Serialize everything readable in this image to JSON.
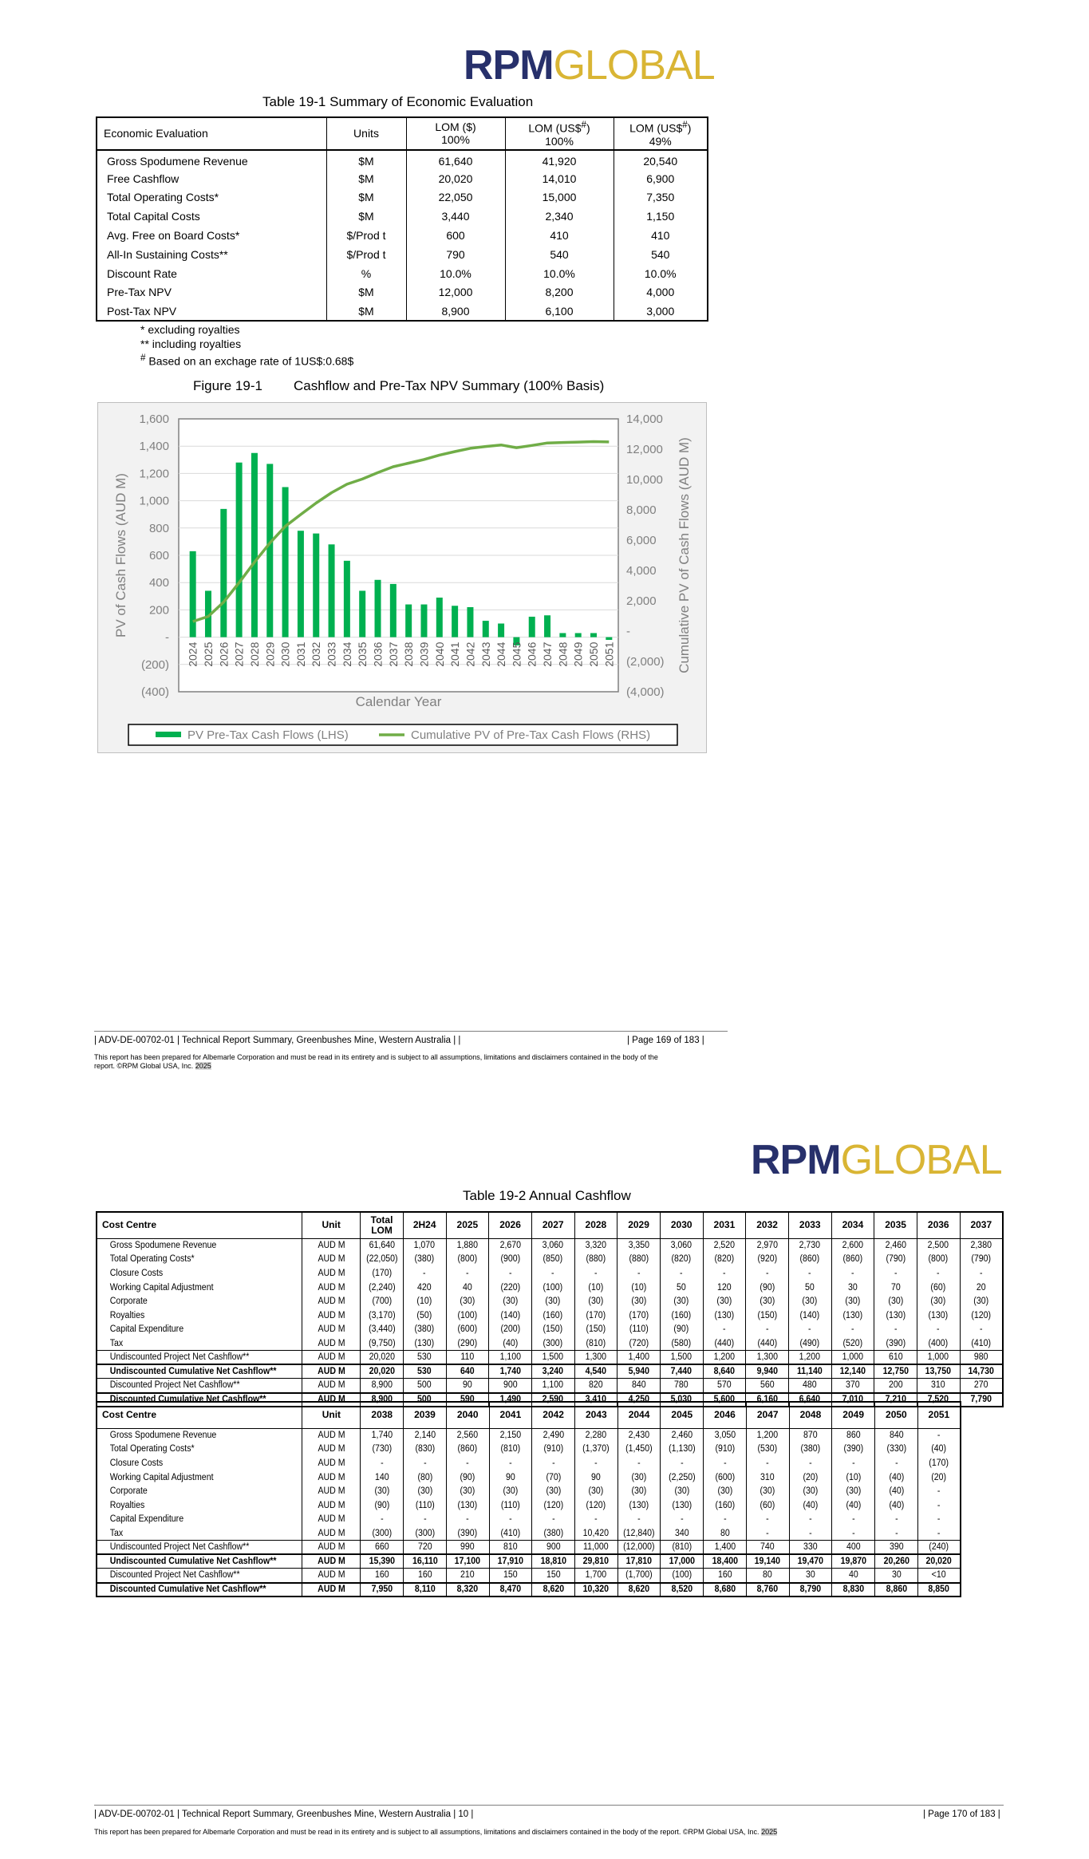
{
  "page1": {
    "logo": {
      "rpm": "RPM",
      "global": "GLOBAL"
    },
    "table_caption": "Table 19-1 Summary of Economic Evaluation",
    "table": {
      "headers": [
        "Economic Evaluation",
        "Units",
        "LOM ($)\n100%",
        "LOM (US$#)\n100%",
        "LOM (US$#)\n49%"
      ],
      "rows": [
        [
          "Gross Spodumene Revenue",
          "$M",
          "61,640",
          "41,920",
          "20,540"
        ],
        [
          "Free Cashflow",
          "$M",
          "20,020",
          "14,010",
          "6,900"
        ],
        [
          "Total Operating Costs*",
          "$M",
          "22,050",
          "15,000",
          "7,350"
        ],
        [
          "Total Capital Costs",
          "$M",
          "3,440",
          "2,340",
          "1,150"
        ],
        [
          "Avg. Free on Board Costs*",
          "$/Prod t",
          "600",
          "410",
          "410"
        ],
        [
          "All-In Sustaining Costs**",
          "$/Prod t",
          "790",
          "540",
          "540"
        ],
        [
          "Discount Rate",
          "%",
          "10.0%",
          "10.0%",
          "10.0%"
        ],
        [
          "Pre-Tax NPV",
          "$M",
          "12,000",
          "8,200",
          "4,000"
        ],
        [
          "Post-Tax NPV",
          "$M",
          "8,900",
          "6,100",
          "3,000"
        ]
      ]
    },
    "notes": [
      "* excluding royalties",
      "** including royalties",
      "# Based on an exchage rate of 1US$:0.68$"
    ],
    "figure_caption_num": "Figure 19-1",
    "figure_caption_title": "Cashflow and Pre-Tax NPV Summary (100% Basis)",
    "footer": "|  ADV-DE-00702-01  |  Technical Report Summary, Greenbushes Mine, Western Australia  |   |",
    "footer_page": "|  Page 169 of 183  |",
    "disclaimer_a": "This report has been prepared for Albemarle Corporation and must be read in its entirety and is subject to all assumptions, limitations and disclaimers contained in the body of the",
    "disclaimer_b": "report. ©RPM Global USA, Inc.",
    "disclaimer_year": "2025"
  },
  "chart_data": {
    "type": "bar",
    "title": "",
    "xlabel": "Calendar Year",
    "ylabel": "PV of Cash Flows (AUD M)",
    "y2label": "Cumulative PV of Cash Flows (AUD M)",
    "ylim": [
      -400,
      1600
    ],
    "y2lim": [
      -4000,
      14000
    ],
    "y_ticks": [
      "1,600",
      "1,400",
      "1,200",
      "1,000",
      "800",
      "600",
      "400",
      "200",
      "-",
      "(200)",
      "(400)"
    ],
    "y2_ticks": [
      "14,000",
      "12,000",
      "10,000",
      "8,000",
      "6,000",
      "4,000",
      "2,000",
      "-",
      "(2,000)",
      "(4,000)"
    ],
    "categories": [
      "2024",
      "2025",
      "2026",
      "2027",
      "2028",
      "2029",
      "2030",
      "2031",
      "2032",
      "2033",
      "2034",
      "2035",
      "2036",
      "2037",
      "2038",
      "2039",
      "2040",
      "2041",
      "2042",
      "2043",
      "2044",
      "2045",
      "2046",
      "2047",
      "2048",
      "2049",
      "2050",
      "2051"
    ],
    "series": [
      {
        "name": "PV Pre-Tax Cash Flows (LHS)",
        "type": "bar",
        "color": "#00b050",
        "values": [
          630,
          340,
          940,
          1280,
          1350,
          1270,
          1100,
          780,
          760,
          680,
          560,
          340,
          420,
          390,
          240,
          240,
          290,
          230,
          220,
          120,
          100,
          -60,
          150,
          160,
          30,
          30,
          30,
          -20
        ]
      },
      {
        "name": "Cumulative PV of Pre-Tax Cash Flows (RHS)",
        "type": "line",
        "color": "#70ad47",
        "values": [
          630,
          970,
          1910,
          3190,
          4540,
          5810,
          6910,
          7690,
          8450,
          9130,
          9690,
          10030,
          10450,
          10840,
          11080,
          11320,
          11610,
          11840,
          12060,
          12180,
          12280,
          12100,
          12250,
          12410,
          12440,
          12470,
          12500,
          12480
        ]
      }
    ],
    "legend_position": "bottom"
  },
  "page2": {
    "logo": {
      "rpm": "RPM",
      "global": "GLOBAL"
    },
    "table_caption": "Table 19-2 Annual Cashflow",
    "table1": {
      "headers": [
        "Cost Centre",
        "Unit",
        "Total LOM",
        "2H24",
        "2025",
        "2026",
        "2027",
        "2028",
        "2029",
        "2030",
        "2031",
        "2032",
        "2033",
        "2034",
        "2035",
        "2036",
        "2037"
      ],
      "rows": [
        [
          "Gross Spodumene Revenue",
          "AUD M",
          "61,640",
          "1,070",
          "1,880",
          "2,670",
          "3,060",
          "3,320",
          "3,350",
          "3,060",
          "2,520",
          "2,970",
          "2,730",
          "2,600",
          "2,460",
          "2,500",
          "2,380"
        ],
        [
          "Total Operating Costs*",
          "AUD M",
          "(22,050)",
          "(380)",
          "(800)",
          "(900)",
          "(850)",
          "(880)",
          "(880)",
          "(820)",
          "(820)",
          "(920)",
          "(860)",
          "(860)",
          "(790)",
          "(800)",
          "(790)"
        ],
        [
          "Closure Costs",
          "AUD M",
          "(170)",
          "-",
          "-",
          "-",
          "-",
          "-",
          "-",
          "-",
          "-",
          "-",
          "-",
          "-",
          "-",
          "-",
          "-"
        ],
        [
          "Working Capital Adjustment",
          "AUD M",
          "(2,240)",
          "420",
          "40",
          "(220)",
          "(100)",
          "(10)",
          "(10)",
          "50",
          "120",
          "(90)",
          "50",
          "30",
          "70",
          "(60)",
          "20"
        ],
        [
          "Corporate",
          "AUD M",
          "(700)",
          "(10)",
          "(30)",
          "(30)",
          "(30)",
          "(30)",
          "(30)",
          "(30)",
          "(30)",
          "(30)",
          "(30)",
          "(30)",
          "(30)",
          "(30)",
          "(30)"
        ],
        [
          "Royalties",
          "AUD M",
          "(3,170)",
          "(50)",
          "(100)",
          "(140)",
          "(160)",
          "(170)",
          "(170)",
          "(160)",
          "(130)",
          "(150)",
          "(140)",
          "(130)",
          "(130)",
          "(130)",
          "(120)"
        ],
        [
          "Capital Expenditure",
          "AUD M",
          "(3,440)",
          "(380)",
          "(600)",
          "(200)",
          "(150)",
          "(150)",
          "(110)",
          "(90)",
          "-",
          "-",
          "-",
          "-",
          "-",
          "-",
          "-"
        ],
        [
          "Tax",
          "AUD M",
          "(9,750)",
          "(130)",
          "(290)",
          "(40)",
          "(300)",
          "(810)",
          "(720)",
          "(580)",
          "(440)",
          "(440)",
          "(490)",
          "(520)",
          "(390)",
          "(400)",
          "(410)"
        ],
        [
          "Undiscounted Project Net Cashflow**",
          "AUD M",
          "20,020",
          "530",
          "110",
          "1,100",
          "1,500",
          "1,300",
          "1,400",
          "1,500",
          "1,200",
          "1,300",
          "1,200",
          "1,000",
          "610",
          "1,000",
          "980"
        ],
        [
          "Undiscounted Cumulative Net Cashflow**",
          "AUD M",
          "20,020",
          "530",
          "640",
          "1,740",
          "3,240",
          "4,540",
          "5,940",
          "7,440",
          "8,640",
          "9,940",
          "11,140",
          "12,140",
          "12,750",
          "13,750",
          "14,730"
        ],
        [
          "Discounted Project Net Cashflow**",
          "AUD M",
          "8,900",
          "500",
          "90",
          "900",
          "1,100",
          "820",
          "840",
          "780",
          "570",
          "560",
          "480",
          "370",
          "200",
          "310",
          "270"
        ],
        [
          "Discounted Cumulative Net Cashflow**",
          "AUD M",
          "8,900",
          "500",
          "590",
          "1,490",
          "2,590",
          "3,410",
          "4,250",
          "5,030",
          "5,600",
          "6,160",
          "6,640",
          "7,010",
          "7,210",
          "7,520",
          "7,790"
        ]
      ]
    },
    "table2": {
      "headers": [
        "Cost Centre",
        "Unit",
        "2038",
        "2039",
        "2040",
        "2041",
        "2042",
        "2043",
        "2044",
        "2045",
        "2046",
        "2047",
        "2048",
        "2049",
        "2050",
        "2051"
      ],
      "rows": [
        [
          "Gross Spodumene Revenue",
          "AUD M",
          "1,740",
          "2,140",
          "2,560",
          "2,150",
          "2,490",
          "2,280",
          "2,430",
          "2,460",
          "3,050",
          "1,200",
          "870",
          "860",
          "840",
          "-"
        ],
        [
          "Total Operating Costs*",
          "AUD M",
          "(730)",
          "(830)",
          "(860)",
          "(810)",
          "(910)",
          "(1,370)",
          "(1,450)",
          "(1,130)",
          "(910)",
          "(530)",
          "(380)",
          "(390)",
          "(330)",
          "(40)"
        ],
        [
          "Closure Costs",
          "AUD M",
          "-",
          "-",
          "-",
          "-",
          "-",
          "-",
          "-",
          "-",
          "-",
          "-",
          "-",
          "-",
          "-",
          "(170)"
        ],
        [
          "Working Capital Adjustment",
          "AUD M",
          "140",
          "(80)",
          "(90)",
          "90",
          "(70)",
          "90",
          "(30)",
          "(2,250)",
          "(600)",
          "310",
          "(20)",
          "(10)",
          "(40)",
          "(20)"
        ],
        [
          "Corporate",
          "AUD M",
          "(30)",
          "(30)",
          "(30)",
          "(30)",
          "(30)",
          "(30)",
          "(30)",
          "(30)",
          "(30)",
          "(30)",
          "(30)",
          "(30)",
          "(40)",
          "-"
        ],
        [
          "Royalties",
          "AUD M",
          "(90)",
          "(110)",
          "(130)",
          "(110)",
          "(120)",
          "(120)",
          "(130)",
          "(130)",
          "(160)",
          "(60)",
          "(40)",
          "(40)",
          "(40)",
          "-"
        ],
        [
          "Capital Expenditure",
          "AUD M",
          "-",
          "-",
          "-",
          "-",
          "-",
          "-",
          "-",
          "-",
          "-",
          "-",
          "-",
          "-",
          "-",
          "-"
        ],
        [
          "Tax",
          "AUD M",
          "(300)",
          "(300)",
          "(390)",
          "(410)",
          "(380)",
          "10,420",
          "(12,840)",
          "340",
          "80",
          "-",
          "-",
          "-",
          "-",
          "-"
        ],
        [
          "Undiscounted Project Net Cashflow**",
          "AUD M",
          "660",
          "720",
          "990",
          "810",
          "900",
          "11,000",
          "(12,000)",
          "(810)",
          "1,400",
          "740",
          "330",
          "400",
          "390",
          "(240)"
        ],
        [
          "Undiscounted Cumulative Net Cashflow**",
          "AUD M",
          "15,390",
          "16,110",
          "17,100",
          "17,910",
          "18,810",
          "29,810",
          "17,810",
          "17,000",
          "18,400",
          "19,140",
          "19,470",
          "19,870",
          "20,260",
          "20,020"
        ],
        [
          "Discounted Project Net Cashflow**",
          "AUD M",
          "160",
          "160",
          "210",
          "150",
          "150",
          "1,700",
          "(1,700)",
          "(100)",
          "160",
          "80",
          "30",
          "40",
          "30",
          "<10"
        ],
        [
          "Discounted Cumulative Net Cashflow**",
          "AUD M",
          "7,950",
          "8,110",
          "8,320",
          "8,470",
          "8,620",
          "10,320",
          "8,620",
          "8,520",
          "8,680",
          "8,760",
          "8,790",
          "8,830",
          "8,860",
          "8,850"
        ]
      ]
    },
    "footer": "|  ADV-DE-00702-01  |  Technical Report Summary, Greenbushes Mine, Western Australia  | 10   |",
    "footer_page": "|  Page 170 of 183  |",
    "disclaimer": "This report has been prepared for Albemarle Corporation and must be read in its entirety and is subject to all assumptions, limitations and disclaimers contained in the body of the report. ©RPM Global USA, Inc.",
    "disclaimer_year": "2025"
  }
}
